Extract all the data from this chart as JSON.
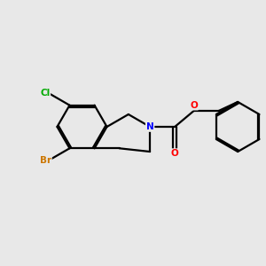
{
  "background_color": "#e8e8e8",
  "bond_color": "#000000",
  "atom_colors": {
    "N": "#0000ff",
    "O": "#ff0000",
    "Cl": "#00aa00",
    "Br": "#cc7700",
    "C": "#000000"
  },
  "figsize": [
    3.0,
    3.0
  ],
  "dpi": 100,
  "xlim": [
    -2.0,
    2.2
  ],
  "ylim": [
    -1.3,
    1.3
  ]
}
